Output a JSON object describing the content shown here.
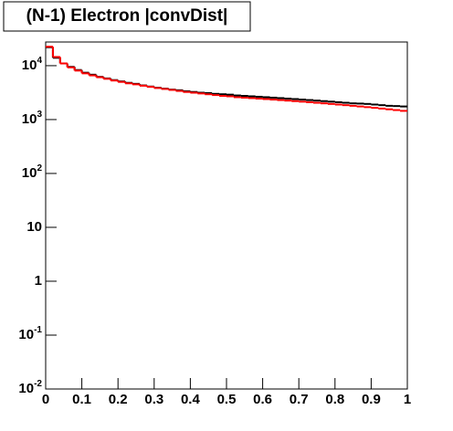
{
  "chart_data": {
    "type": "histogram",
    "title": "(N-1) Electron |convDist|",
    "bins": [
      0,
      0.02,
      0.04,
      0.06,
      0.08,
      0.1,
      0.12,
      0.14,
      0.16,
      0.18,
      0.2,
      0.22,
      0.24,
      0.26,
      0.28,
      0.3,
      0.32,
      0.34,
      0.36,
      0.38,
      0.4,
      0.42,
      0.44,
      0.46,
      0.48,
      0.5,
      0.52,
      0.54,
      0.56,
      0.58,
      0.6,
      0.62,
      0.64,
      0.66,
      0.68,
      0.7,
      0.72,
      0.74,
      0.76,
      0.78,
      0.8,
      0.82,
      0.84,
      0.86,
      0.88,
      0.9,
      0.92,
      0.94,
      0.96,
      0.98,
      1
    ],
    "series": [
      {
        "color": "#000000",
        "values": [
          22000,
          14000,
          11000,
          9500,
          8300,
          7400,
          6800,
          6200,
          5800,
          5400,
          5100,
          4800,
          4600,
          4300,
          4100,
          3900,
          3750,
          3600,
          3500,
          3350,
          3250,
          3150,
          3100,
          3000,
          2950,
          2900,
          2800,
          2750,
          2700,
          2650,
          2600,
          2550,
          2500,
          2450,
          2400,
          2350,
          2300,
          2250,
          2200,
          2150,
          2100,
          2050,
          2000,
          1980,
          1950,
          1900,
          1850,
          1800,
          1780,
          1750
        ]
      },
      {
        "color": "#ff0000",
        "values": [
          22500,
          14500,
          11000,
          9300,
          8100,
          7200,
          6600,
          6100,
          5700,
          5300,
          5000,
          4700,
          4500,
          4250,
          4050,
          3850,
          3700,
          3550,
          3400,
          3250,
          3150,
          3050,
          2950,
          2850,
          2750,
          2700,
          2600,
          2550,
          2500,
          2450,
          2400,
          2350,
          2300,
          2250,
          2200,
          2150,
          2100,
          2050,
          2000,
          1950,
          1900,
          1850,
          1800,
          1750,
          1700,
          1650,
          1600,
          1550,
          1500,
          1450
        ]
      }
    ],
    "xlim": [
      0,
      1
    ],
    "xticks": [
      0,
      0.1,
      0.2,
      0.3,
      0.4,
      0.5,
      0.6,
      0.7,
      0.8,
      0.9,
      1
    ],
    "ylim": [
      0.01,
      27500
    ],
    "log_y": true,
    "yticks": [
      {
        "value": 0.01,
        "label": "10",
        "exponent": "-2"
      },
      {
        "value": 0.1,
        "label": "10",
        "exponent": "-1"
      },
      1,
      10,
      {
        "value": 100,
        "label": "10",
        "exponent": "2"
      },
      {
        "value": 1000,
        "label": "10",
        "exponent": "3"
      },
      {
        "value": 10000,
        "label": "10",
        "exponent": "4"
      }
    ]
  }
}
